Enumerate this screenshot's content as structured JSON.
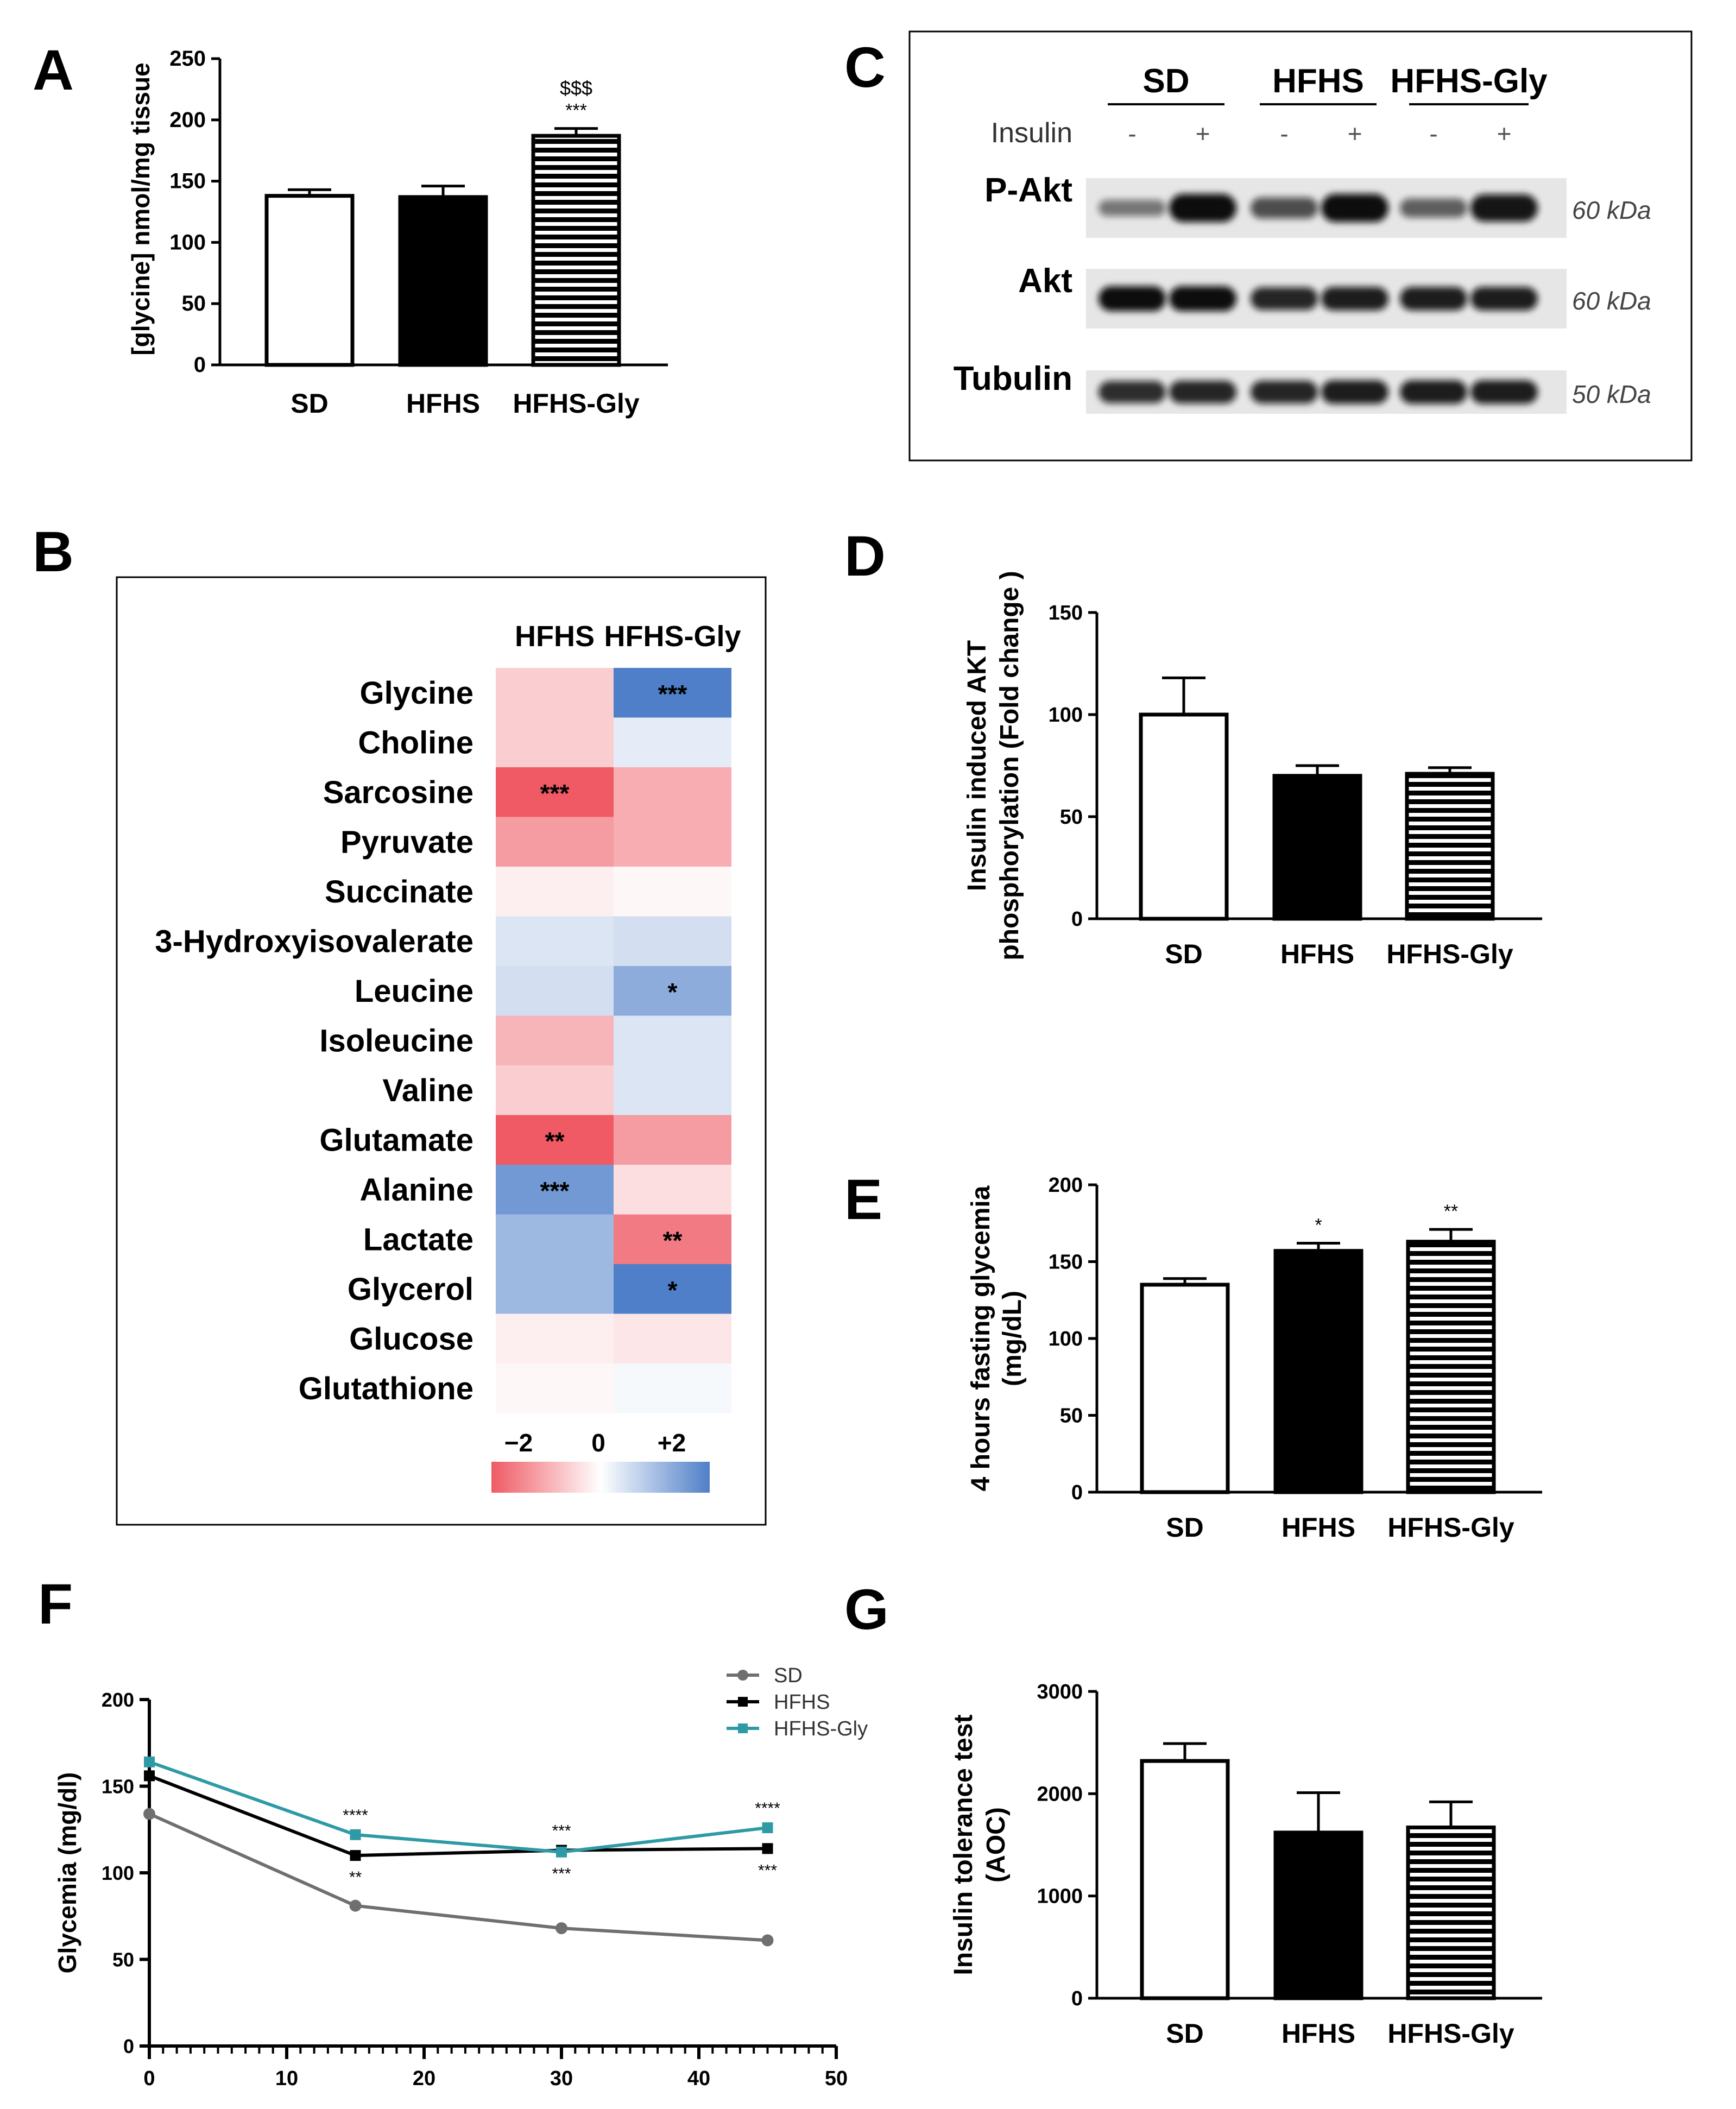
{
  "panel_labels": [
    "A",
    "B",
    "C",
    "D",
    "E",
    "F",
    "G"
  ],
  "colors": {
    "sd_fill": "#ffffff",
    "hfhs_fill": "#000000",
    "stripe_line": "#000000",
    "stripe_bg": "#ffffff",
    "sd_line": "#6f6f6f",
    "hfhs_line": "#000000",
    "hfhs_gly_line": "#2e9aa5",
    "heat_negative": "#ef5a64",
    "heat_zero": "#ffffff",
    "heat_positive": "#4f7fc8"
  },
  "chart_data": [
    {
      "id": "A",
      "type": "bar",
      "ylabel": "[glycine] nmol/mg tissue",
      "categories": [
        "SD",
        "HFHS",
        "HFHS-Gly"
      ],
      "values": [
        138,
        137,
        187
      ],
      "errors": [
        5,
        9,
        6
      ],
      "annotations": [
        "",
        "",
        "***"
      ],
      "annotations2": [
        "",
        "",
        "$$$"
      ],
      "ylim": [
        0,
        250
      ],
      "yticks": [
        0,
        50,
        100,
        150,
        200,
        250
      ]
    },
    {
      "id": "B",
      "type": "heatmap",
      "columns": [
        "HFHS",
        "HFHS-Gly"
      ],
      "rows": [
        "Glycine",
        "Choline",
        "Sarcosine",
        "Pyruvate",
        "Succinate",
        "3-Hydroxyisovalerate",
        "Leucine",
        "Isoleucine",
        "Valine",
        "Glutamate",
        "Alanine",
        "Lactate",
        "Glycerol",
        "Glucose",
        "Glutathione"
      ],
      "values": [
        [
          -0.6,
          2.0
        ],
        [
          -0.6,
          0.3
        ],
        [
          -2.0,
          -1.0
        ],
        [
          -1.2,
          -1.0
        ],
        [
          -0.2,
          -0.1
        ],
        [
          0.4,
          0.5
        ],
        [
          0.5,
          1.3
        ],
        [
          -0.9,
          0.4
        ],
        [
          -0.6,
          0.4
        ],
        [
          -2.0,
          -1.2
        ],
        [
          1.6,
          -0.4
        ],
        [
          1.1,
          -1.6
        ],
        [
          1.1,
          2.0
        ],
        [
          -0.2,
          -0.3
        ],
        [
          -0.1,
          0.1
        ]
      ],
      "significance": [
        [
          "",
          "***"
        ],
        [
          "",
          ""
        ],
        [
          "***",
          ""
        ],
        [
          "",
          ""
        ],
        [
          "",
          ""
        ],
        [
          "",
          ""
        ],
        [
          "",
          "*"
        ],
        [
          "",
          ""
        ],
        [
          "",
          ""
        ],
        [
          "**",
          ""
        ],
        [
          "***",
          ""
        ],
        [
          "",
          "**"
        ],
        [
          "",
          "*"
        ],
        [
          "",
          ""
        ],
        [
          "",
          ""
        ]
      ],
      "scale_labels": [
        "−2",
        "0",
        "+2"
      ],
      "vmin": -2,
      "vmax": 2
    },
    {
      "id": "D",
      "type": "bar",
      "ylabel": [
        "Insulin induced AKT",
        "phosphorylation (Fold change )"
      ],
      "categories": [
        "SD",
        "HFHS",
        "HFHS-Gly"
      ],
      "values": [
        100,
        70,
        71
      ],
      "errors": [
        18,
        5,
        3
      ],
      "annotations": [
        "",
        "",
        ""
      ],
      "ylim": [
        0,
        150
      ],
      "yticks": [
        0,
        50,
        100,
        150
      ]
    },
    {
      "id": "E",
      "type": "bar",
      "ylabel": [
        "4 hours fasting glycemia",
        "(mg/dL)"
      ],
      "categories": [
        "SD",
        "HFHS",
        "HFHS-Gly"
      ],
      "values": [
        135,
        157,
        163
      ],
      "errors": [
        4,
        5,
        8
      ],
      "annotations": [
        "",
        "*",
        "**"
      ],
      "ylim": [
        0,
        200
      ],
      "yticks": [
        0,
        50,
        100,
        150,
        200
      ]
    },
    {
      "id": "F",
      "type": "line",
      "ylabel": "Glycemia (mg/dl)",
      "x": [
        0,
        15,
        30,
        45
      ],
      "series": [
        {
          "name": "SD",
          "values": [
            134,
            81,
            68,
            61
          ]
        },
        {
          "name": "HFHS",
          "values": [
            156,
            110,
            113,
            114
          ]
        },
        {
          "name": "HFHS-Gly",
          "values": [
            164,
            122,
            112,
            126
          ]
        }
      ],
      "annotations_upper": [
        "",
        "****",
        "***",
        "****"
      ],
      "annotations_lower": [
        "",
        "**",
        "***",
        "***"
      ],
      "xlim": [
        0,
        50
      ],
      "xticks": [
        0,
        10,
        20,
        30,
        40,
        50
      ],
      "ylim": [
        0,
        200
      ],
      "yticks": [
        0,
        50,
        100,
        150,
        200
      ]
    },
    {
      "id": "G",
      "type": "bar",
      "ylabel": [
        "Insulin tolerance test",
        "(AOC)"
      ],
      "categories": [
        "SD",
        "HFHS",
        "HFHS-Gly"
      ],
      "values": [
        2320,
        1620,
        1670
      ],
      "errors": [
        170,
        390,
        250
      ],
      "annotations": [
        "",
        "",
        ""
      ],
      "ylim": [
        0,
        3000
      ],
      "yticks": [
        0,
        1000,
        2000,
        3000
      ]
    }
  ],
  "western_blot": {
    "groups": [
      "SD",
      "HFHS",
      "HFHS-Gly"
    ],
    "insulin_label": "Insulin",
    "insulin_signs": [
      "-",
      "+",
      "-",
      "+",
      "-",
      "+"
    ],
    "rows": [
      {
        "name": "P-Akt",
        "size": "60 kDa",
        "intensity": [
          0.35,
          1.0,
          0.6,
          1.0,
          0.5,
          0.95
        ]
      },
      {
        "name": "Akt",
        "size": "60 kDa",
        "intensity": [
          1.0,
          1.0,
          0.85,
          0.9,
          0.9,
          0.9
        ]
      },
      {
        "name": "Tubulin",
        "size": "50 kDa",
        "intensity": [
          0.8,
          0.85,
          0.85,
          0.9,
          0.9,
          0.9
        ]
      }
    ]
  }
}
